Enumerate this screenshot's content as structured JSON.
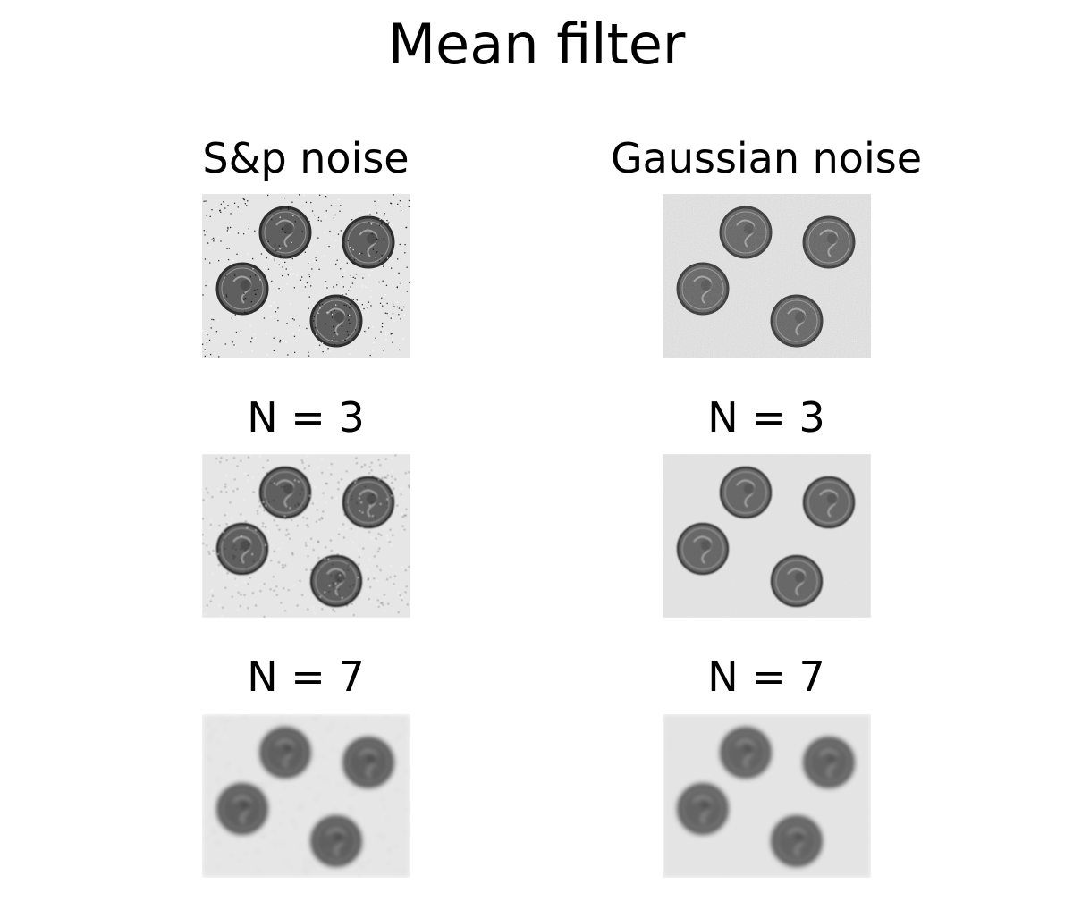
{
  "title": "Mean filter",
  "columns": [
    {
      "panels": [
        {
          "label": "S&p noise",
          "noise": "salt-and-pepper",
          "blur": 0
        },
        {
          "label": "N = 3",
          "noise": "salt-and-pepper",
          "blur": 1
        },
        {
          "label": "N = 7",
          "noise": "salt-and-pepper",
          "blur": 2
        }
      ]
    },
    {
      "panels": [
        {
          "label": "Gaussian noise",
          "noise": "gaussian",
          "blur": 0
        },
        {
          "label": "N = 3",
          "noise": "gaussian",
          "blur": 1
        },
        {
          "label": "N = 7",
          "noise": "gaussian",
          "blur": 2
        }
      ]
    }
  ],
  "colors": {
    "background": "#e6e6e6",
    "coin_fill": "#5f5f5f",
    "coin_edge": "#2e2e2e",
    "coin_highlight": "#bdbdbd"
  }
}
